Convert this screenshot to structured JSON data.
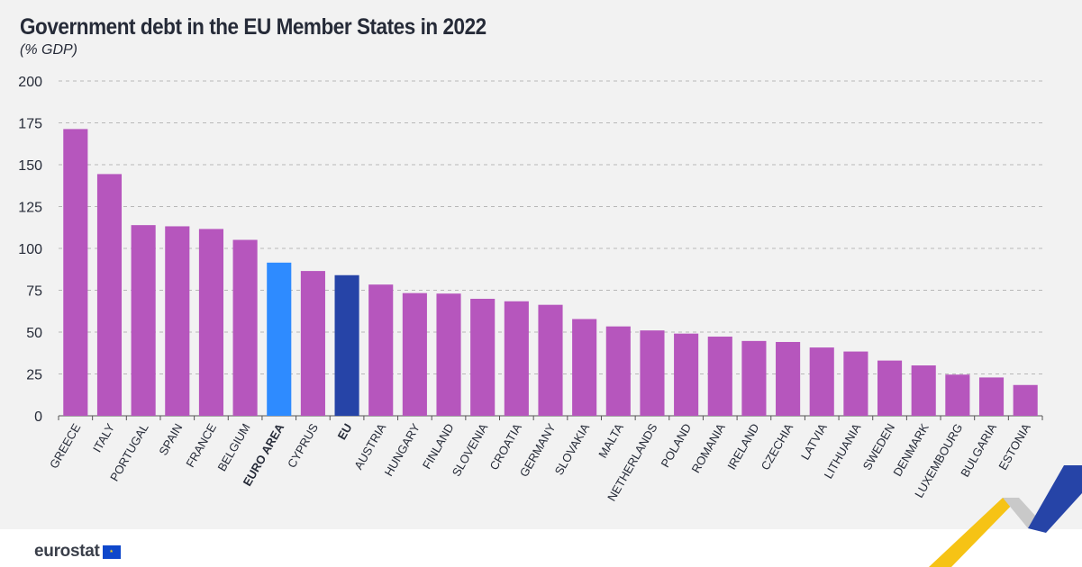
{
  "title": "Government debt in the EU Member States in 2022",
  "subtitle": "(% GDP)",
  "brand": {
    "name": "eurostat",
    "flag_glyph": "★"
  },
  "colors": {
    "country": "#b656bd",
    "euro_area": "#2e8bff",
    "eu": "#2644a7",
    "grid": "#b8b8b8",
    "axis_text": "#262b38",
    "deco_yellow": "#f6c315",
    "deco_blue": "#2644a7",
    "deco_grey": "#c9c9c9"
  },
  "chart_data": {
    "type": "bar",
    "title": "Government debt in the EU Member States in 2022",
    "ylabel": "% GDP",
    "xlabel": "",
    "ylim": [
      0,
      200
    ],
    "yticks": [
      0,
      25,
      50,
      75,
      100,
      125,
      150,
      175,
      200
    ],
    "grid": true,
    "categories": [
      "GREECE",
      "ITALY",
      "PORTUGAL",
      "SPAIN",
      "FRANCE",
      "BELGIUM",
      "EURO AREA",
      "CYPRUS",
      "EU",
      "AUSTRIA",
      "HUNGARY",
      "FINLAND",
      "SLOVENIA",
      "CROATIA",
      "GERMANY",
      "SLOVAKIA",
      "MALTA",
      "NETHERLANDS",
      "POLAND",
      "ROMANIA",
      "IRELAND",
      "CZECHIA",
      "LATVIA",
      "LITHUANIA",
      "SWEDEN",
      "DENMARK",
      "LUXEMBOURG",
      "BULGARIA",
      "ESTONIA"
    ],
    "values": [
      171.3,
      144.4,
      113.9,
      113.2,
      111.6,
      105.1,
      91.5,
      86.5,
      84.0,
      78.4,
      73.3,
      73.0,
      69.9,
      68.4,
      66.3,
      57.8,
      53.4,
      51.0,
      49.1,
      47.3,
      44.7,
      44.1,
      40.8,
      38.4,
      33.0,
      30.1,
      24.6,
      22.9,
      18.4
    ],
    "highlight": {
      "EURO AREA": "euro_area",
      "EU": "eu"
    }
  }
}
